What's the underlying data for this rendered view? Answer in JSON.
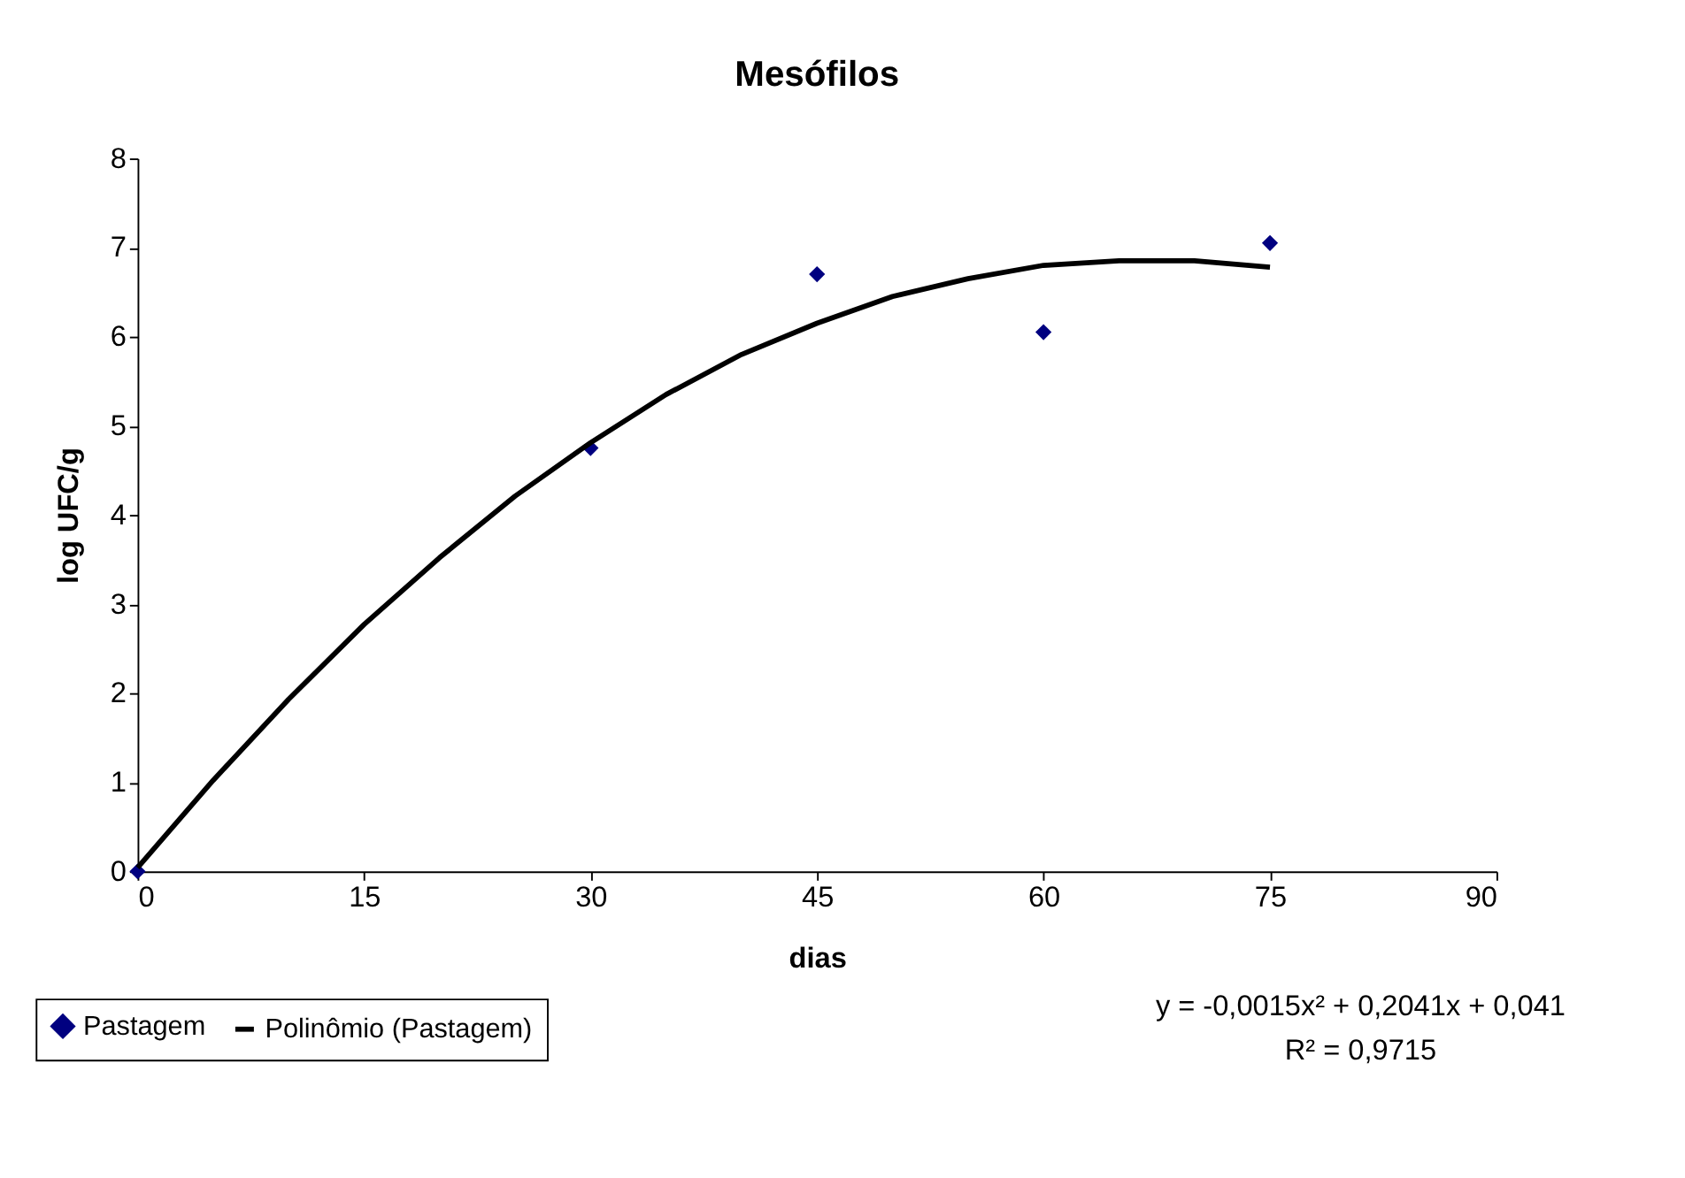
{
  "chart_data": {
    "type": "scatter",
    "title": "Mesófilos",
    "xlabel": "dias",
    "ylabel": "log UFC/g",
    "xlim": [
      0,
      90
    ],
    "xticks": [
      0,
      15,
      30,
      45,
      60,
      75,
      90
    ],
    "ylim": [
      0,
      8
    ],
    "yticks": [
      0,
      1,
      2,
      3,
      4,
      5,
      6,
      7,
      8
    ],
    "grid": false,
    "legend": "bottom left",
    "series": [
      {
        "name": "Pastagem",
        "marker": "diamond",
        "color": "#000080",
        "x": [
          0,
          30,
          45,
          60,
          75
        ],
        "values": [
          0,
          4.75,
          6.7,
          6.05,
          7.05
        ]
      },
      {
        "name": "Polinômio (Pastagem)",
        "type": "line",
        "color": "#000000",
        "line_style": "solid",
        "x": [
          0,
          5,
          10,
          15,
          20,
          25,
          30,
          35,
          40,
          45,
          50,
          55,
          60,
          65,
          70,
          75
        ],
        "values": [
          0.04,
          1.02,
          1.93,
          2.77,
          3.52,
          4.21,
          4.81,
          5.35,
          5.8,
          6.15,
          6.45,
          6.65,
          6.8,
          6.85,
          6.85,
          6.78
        ]
      }
    ],
    "annotations": [
      "y = -0,0015x² + 0,2041x + 0,041",
      "R² = 0,9715"
    ]
  }
}
